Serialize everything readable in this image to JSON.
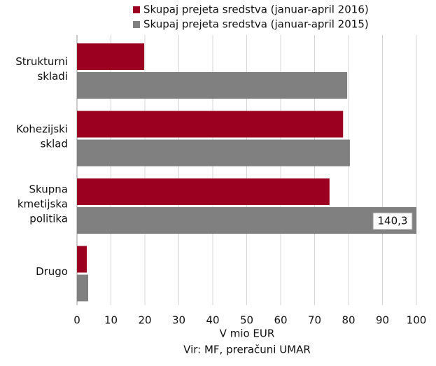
{
  "chart_data": {
    "type": "hbar",
    "categories": [
      "Strukturni skladi",
      "Kohezijski sklad",
      "Skupna kmetijska politika",
      "Drugo"
    ],
    "series": [
      {
        "name": "Skupaj prejeta sredstva (januar-april 2016)",
        "color": "#9b0020",
        "values": [
          19.8,
          78.4,
          74.4,
          2.9
        ]
      },
      {
        "name": "Skupaj prejeta sredstva (januar-april 2015)",
        "color": "#808080",
        "values": [
          79.6,
          80.4,
          140.3,
          3.3
        ],
        "value_labels": [
          null,
          null,
          "140,3",
          null
        ]
      }
    ],
    "xlim": [
      0,
      100
    ],
    "xticks": [
      0,
      10,
      20,
      30,
      40,
      50,
      60,
      70,
      80,
      90,
      100
    ],
    "xlabel": "V mio EUR",
    "source": "Vir: MF, preračuni UMAR",
    "grid": true
  }
}
